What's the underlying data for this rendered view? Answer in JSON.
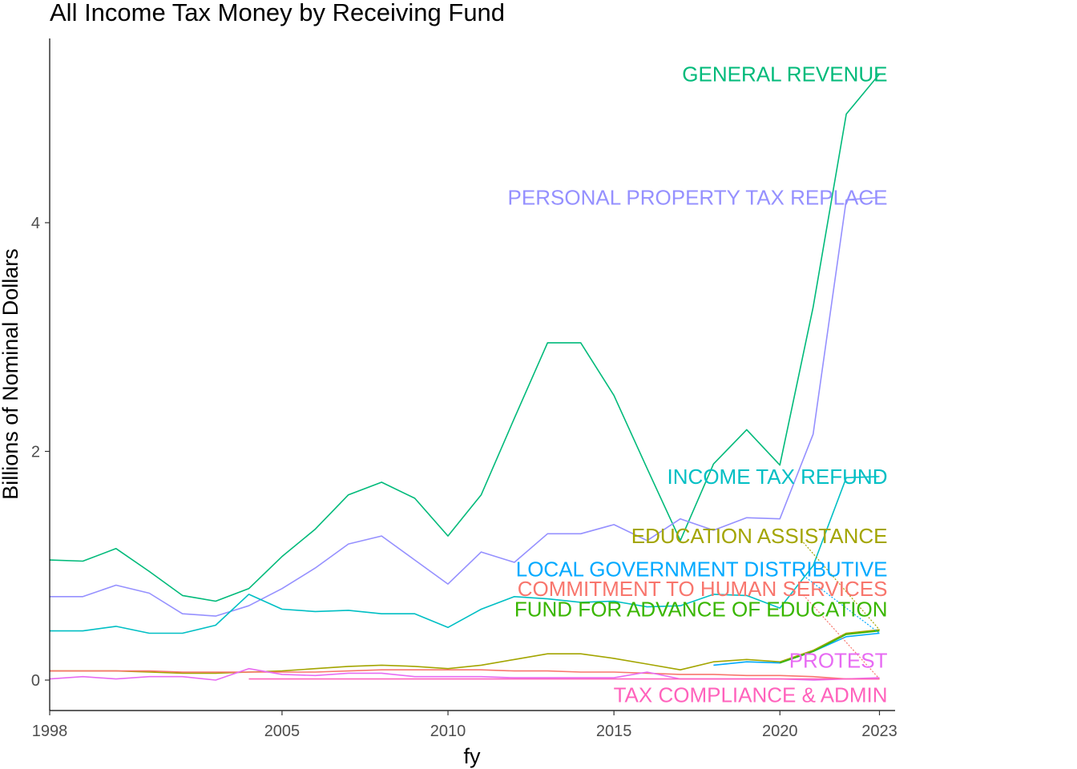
{
  "chart_data": {
    "type": "line",
    "title": "All Income Tax Money by Receiving Fund",
    "xlabel": "fy",
    "ylabel": "Billions of Nominal Dollars",
    "xlim": [
      1998,
      2023
    ],
    "ylim": [
      -0.25,
      5.65
    ],
    "x_ticks": [
      1998,
      2005,
      2010,
      2015,
      2020,
      2023
    ],
    "y_ticks": [
      0,
      2,
      4
    ],
    "grid": false,
    "legend": "direct labels at series end (right)",
    "series": [
      {
        "name": "GENERAL REVENUE",
        "color": "#00BA7A",
        "points": [
          [
            1998,
            1.05
          ],
          [
            1999,
            1.04
          ],
          [
            2000,
            1.15
          ],
          [
            2001,
            0.95
          ],
          [
            2002,
            0.74
          ],
          [
            2003,
            0.69
          ],
          [
            2004,
            0.8
          ],
          [
            2005,
            1.08
          ],
          [
            2006,
            1.32
          ],
          [
            2007,
            1.62
          ],
          [
            2008,
            1.73
          ],
          [
            2009,
            1.59
          ],
          [
            2010,
            1.26
          ],
          [
            2011,
            1.62
          ],
          [
            2012,
            2.29
          ],
          [
            2013,
            2.95
          ],
          [
            2014,
            2.95
          ],
          [
            2015,
            2.49
          ],
          [
            2016,
            1.85
          ],
          [
            2017,
            1.22
          ],
          [
            2018,
            1.89
          ],
          [
            2019,
            2.19
          ],
          [
            2020,
            1.88
          ],
          [
            2021,
            3.26
          ],
          [
            2022,
            4.95
          ],
          [
            2023,
            5.3
          ]
        ]
      },
      {
        "name": "PERSONAL PROPERTY TAX REPLACE",
        "color": "#9590FF",
        "points": [
          [
            1998,
            0.73
          ],
          [
            1999,
            0.73
          ],
          [
            2000,
            0.83
          ],
          [
            2001,
            0.76
          ],
          [
            2002,
            0.58
          ],
          [
            2003,
            0.56
          ],
          [
            2004,
            0.65
          ],
          [
            2005,
            0.8
          ],
          [
            2006,
            0.98
          ],
          [
            2007,
            1.19
          ],
          [
            2008,
            1.26
          ],
          [
            2009,
            1.05
          ],
          [
            2010,
            0.84
          ],
          [
            2011,
            1.12
          ],
          [
            2012,
            1.03
          ],
          [
            2013,
            1.28
          ],
          [
            2014,
            1.28
          ],
          [
            2015,
            1.36
          ],
          [
            2016,
            1.22
          ],
          [
            2017,
            1.41
          ],
          [
            2018,
            1.31
          ],
          [
            2019,
            1.42
          ],
          [
            2020,
            1.41
          ],
          [
            2021,
            2.15
          ],
          [
            2022,
            4.2
          ],
          [
            2023,
            4.22
          ]
        ]
      },
      {
        "name": "INCOME TAX REFUND",
        "color": "#00BFC4",
        "points": [
          [
            1998,
            0.43
          ],
          [
            1999,
            0.43
          ],
          [
            2000,
            0.47
          ],
          [
            2001,
            0.41
          ],
          [
            2002,
            0.41
          ],
          [
            2003,
            0.48
          ],
          [
            2004,
            0.75
          ],
          [
            2005,
            0.62
          ],
          [
            2006,
            0.6
          ],
          [
            2007,
            0.61
          ],
          [
            2008,
            0.58
          ],
          [
            2009,
            0.58
          ],
          [
            2010,
            0.46
          ],
          [
            2011,
            0.62
          ],
          [
            2012,
            0.73
          ],
          [
            2013,
            0.71
          ],
          [
            2014,
            0.68
          ],
          [
            2015,
            0.69
          ],
          [
            2016,
            0.64
          ],
          [
            2017,
            0.65
          ],
          [
            2018,
            0.75
          ],
          [
            2019,
            0.74
          ],
          [
            2020,
            0.63
          ],
          [
            2021,
            1.0
          ],
          [
            2022,
            1.77
          ],
          [
            2023,
            1.78
          ]
        ]
      },
      {
        "name": "EDUCATION ASSISTANCE",
        "color": "#A3A500",
        "points": [
          [
            1998,
            0.08
          ],
          [
            1999,
            0.08
          ],
          [
            2000,
            0.08
          ],
          [
            2001,
            0.07
          ],
          [
            2002,
            0.06
          ],
          [
            2003,
            0.06
          ],
          [
            2004,
            0.07
          ],
          [
            2005,
            0.08
          ],
          [
            2006,
            0.1
          ],
          [
            2007,
            0.12
          ],
          [
            2008,
            0.13
          ],
          [
            2009,
            0.12
          ],
          [
            2010,
            0.1
          ],
          [
            2011,
            0.13
          ],
          [
            2012,
            0.18
          ],
          [
            2013,
            0.23
          ],
          [
            2014,
            0.23
          ],
          [
            2015,
            0.19
          ],
          [
            2016,
            0.14
          ],
          [
            2017,
            0.09
          ],
          [
            2018,
            0.16
          ],
          [
            2019,
            0.18
          ],
          [
            2020,
            0.16
          ],
          [
            2021,
            0.26
          ],
          [
            2022,
            0.41
          ],
          [
            2023,
            0.44
          ]
        ]
      },
      {
        "name": "LOCAL GOVERNMENT DISTRIBUTIVE",
        "color": "#00A9FF",
        "points": [
          [
            2018,
            0.13
          ],
          [
            2019,
            0.16
          ],
          [
            2020,
            0.15
          ],
          [
            2021,
            0.25
          ],
          [
            2022,
            0.38
          ],
          [
            2023,
            0.41
          ]
        ]
      },
      {
        "name": "COMMITMENT TO HUMAN SERVICES",
        "color": "#F8766D",
        "points": [
          [
            1998,
            0.08
          ],
          [
            1999,
            0.08
          ],
          [
            2000,
            0.08
          ],
          [
            2001,
            0.08
          ],
          [
            2002,
            0.07
          ],
          [
            2003,
            0.07
          ],
          [
            2004,
            0.07
          ],
          [
            2005,
            0.07
          ],
          [
            2006,
            0.07
          ],
          [
            2007,
            0.08
          ],
          [
            2008,
            0.09
          ],
          [
            2009,
            0.09
          ],
          [
            2010,
            0.09
          ],
          [
            2011,
            0.09
          ],
          [
            2012,
            0.08
          ],
          [
            2013,
            0.08
          ],
          [
            2014,
            0.07
          ],
          [
            2015,
            0.07
          ],
          [
            2016,
            0.06
          ],
          [
            2017,
            0.05
          ],
          [
            2018,
            0.05
          ],
          [
            2019,
            0.04
          ],
          [
            2020,
            0.04
          ],
          [
            2021,
            0.03
          ],
          [
            2022,
            0.01
          ],
          [
            2023,
            0.01
          ]
        ]
      },
      {
        "name": "FUND FOR ADVANCE OF EDUCATION",
        "color": "#39B600",
        "points": [
          [
            2020,
            0.15
          ],
          [
            2021,
            0.25
          ],
          [
            2022,
            0.4
          ],
          [
            2023,
            0.43
          ]
        ]
      },
      {
        "name": "PROTEST",
        "color": "#E76BF3",
        "points": [
          [
            1998,
            0.01
          ],
          [
            1999,
            0.03
          ],
          [
            2000,
            0.01
          ],
          [
            2001,
            0.03
          ],
          [
            2002,
            0.03
          ],
          [
            2003,
            0.0
          ],
          [
            2004,
            0.1
          ],
          [
            2005,
            0.05
          ],
          [
            2006,
            0.04
          ],
          [
            2007,
            0.06
          ],
          [
            2008,
            0.06
          ],
          [
            2009,
            0.03
          ],
          [
            2010,
            0.03
          ],
          [
            2011,
            0.03
          ],
          [
            2012,
            0.02
          ],
          [
            2013,
            0.02
          ],
          [
            2014,
            0.02
          ],
          [
            2015,
            0.02
          ],
          [
            2016,
            0.07
          ],
          [
            2017,
            0.01
          ],
          [
            2018,
            0.01
          ],
          [
            2019,
            0.01
          ],
          [
            2020,
            0.01
          ],
          [
            2021,
            0.0
          ],
          [
            2022,
            0.01
          ],
          [
            2023,
            0.02
          ]
        ]
      },
      {
        "name": "TAX COMPLIANCE & ADMIN",
        "color": "#FF62BC",
        "points": [
          [
            2004,
            0.01
          ],
          [
            2006,
            0.01
          ],
          [
            2008,
            0.01
          ],
          [
            2010,
            0.01
          ],
          [
            2012,
            0.01
          ],
          [
            2014,
            0.01
          ],
          [
            2016,
            0.01
          ],
          [
            2018,
            0.01
          ],
          [
            2020,
            0.01
          ],
          [
            2022,
            0.01
          ],
          [
            2023,
            0.01
          ]
        ]
      }
    ],
    "labels": [
      {
        "text": "GENERAL REVENUE",
        "series": 0,
        "y": 5.3
      },
      {
        "text": "PERSONAL PROPERTY TAX REPLACE",
        "series": 1,
        "y": 4.22
      },
      {
        "text": "INCOME TAX REFUND",
        "series": 2,
        "y": 1.78
      },
      {
        "text": "EDUCATION ASSISTANCE",
        "series": 3,
        "y": 1.26
      },
      {
        "text": "LOCAL GOVERNMENT DISTRIBUTIVE",
        "series": 4,
        "y": 0.97
      },
      {
        "text": "COMMITMENT TO HUMAN SERVICES",
        "series": 5,
        "y": 0.8
      },
      {
        "text": "FUND FOR ADVANCE OF EDUCATION",
        "series": 6,
        "y": 0.62
      },
      {
        "text": "PROTEST",
        "series": 7,
        "y": 0.17
      },
      {
        "text": "TAX COMPLIANCE & ADMIN",
        "series": 8,
        "y": -0.13
      }
    ]
  }
}
